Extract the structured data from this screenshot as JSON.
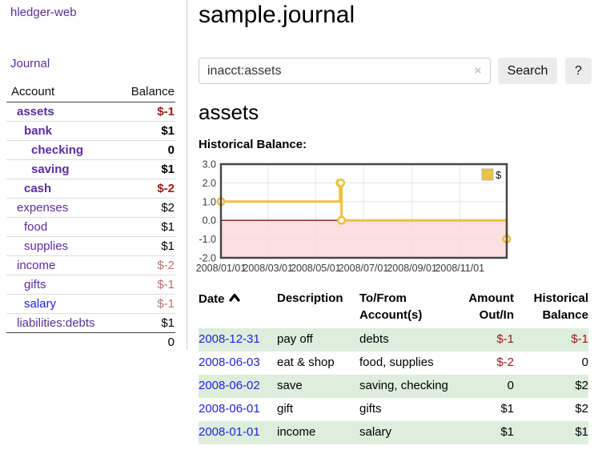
{
  "app": {
    "title": "hledger-web"
  },
  "colors": {
    "link_purple": "#5b2d9e",
    "link_blue": "#2222dd",
    "negative_strong": "#a51616",
    "negative_soft": "#bf6f6f",
    "row_shade_green": "#ddeedd",
    "chart_line_gold": "#edc240",
    "chart_negative_fill_pink": "#f9dada",
    "chart_zero_line_red": "#8c1717"
  },
  "sidebar": {
    "journal_link": "Journal",
    "accounts_table": {
      "headers": [
        "Account",
        "Balance"
      ],
      "rows": [
        {
          "name": "assets",
          "indent": 0,
          "bold": true,
          "name_class": "purple",
          "balance": "$-1",
          "balance_class": "neg"
        },
        {
          "name": "bank",
          "indent": 1,
          "bold": true,
          "name_class": "purple",
          "balance": "$1",
          "balance_class": ""
        },
        {
          "name": "checking",
          "indent": 2,
          "bold": true,
          "name_class": "purple",
          "balance": "0",
          "balance_class": ""
        },
        {
          "name": "saving",
          "indent": 2,
          "bold": true,
          "name_class": "purple",
          "balance": "$1",
          "balance_class": ""
        },
        {
          "name": "cash",
          "indent": 1,
          "bold": true,
          "name_class": "purple",
          "balance": "$-2",
          "balance_class": "neg"
        },
        {
          "name": "expenses",
          "indent": 0,
          "bold": false,
          "name_class": "purple",
          "balance": "$2",
          "balance_class": ""
        },
        {
          "name": "food",
          "indent": 1,
          "bold": false,
          "name_class": "purple",
          "balance": "$1",
          "balance_class": ""
        },
        {
          "name": "supplies",
          "indent": 1,
          "bold": false,
          "name_class": "purple",
          "balance": "$1",
          "balance_class": ""
        },
        {
          "name": "income",
          "indent": 0,
          "bold": false,
          "name_class": "purple",
          "balance": "$-2",
          "balance_class": "neg-soft"
        },
        {
          "name": "gifts",
          "indent": 1,
          "bold": false,
          "name_class": "purple",
          "balance": "$-1",
          "balance_class": "neg-soft"
        },
        {
          "name": "salary",
          "indent": 1,
          "bold": false,
          "name_class": "blue",
          "balance": "$-1",
          "balance_class": "neg-soft"
        },
        {
          "name": "liabilities:debts",
          "indent": 0,
          "bold": false,
          "name_class": "purple",
          "balance": "$1",
          "balance_class": ""
        }
      ],
      "total": "0"
    }
  },
  "main": {
    "title": "sample.journal",
    "search": {
      "value": "inacct:assets",
      "placeholder": "",
      "clear_icon": "×",
      "button": "Search",
      "help_button": "?"
    },
    "account_heading": "assets",
    "chart_label": "Historical Balance:",
    "chart_data": {
      "type": "line",
      "step": true,
      "title": "Historical Balance:",
      "xlabel": "",
      "ylabel": "",
      "xlim": [
        "2008-01-01",
        "2008-12-31"
      ],
      "ylim": [
        -2.0,
        3.0
      ],
      "grid": true,
      "legend_position": "top-right",
      "series": [
        {
          "name": "$",
          "color": "#edc240",
          "points": [
            [
              "2008-01-01",
              1
            ],
            [
              "2008-06-01",
              2
            ],
            [
              "2008-06-02",
              2
            ],
            [
              "2008-06-03",
              0
            ],
            [
              "2008-12-31",
              -1
            ]
          ]
        }
      ],
      "x_ticks": [
        "2008/01/01",
        "2008/03/01",
        "2008/05/01",
        "2008/07/01",
        "2008/09/01",
        "2008/11/01"
      ],
      "y_ticks": [
        3.0,
        2.0,
        1.0,
        0.0,
        -1.0,
        -2.0
      ],
      "negative_region": {
        "from": 0,
        "to": -2
      }
    },
    "register_table": {
      "headers": {
        "date": "Date",
        "description": "Description",
        "accounts": "To/From Account(s)",
        "amount": "Amount Out/In",
        "balance": "Historical Balance"
      },
      "rows": [
        {
          "date": "2008-12-31",
          "description": "pay off",
          "accounts": "debts",
          "amount": "$-1",
          "amount_class": "neg",
          "balance": "$-1",
          "balance_class": "neg",
          "shaded": true
        },
        {
          "date": "2008-06-03",
          "description": "eat & shop",
          "accounts": "food, supplies",
          "amount": "$-2",
          "amount_class": "neg",
          "balance": "0",
          "balance_class": "",
          "shaded": false
        },
        {
          "date": "2008-06-02",
          "description": "save",
          "accounts": "saving, checking",
          "amount": "0",
          "amount_class": "",
          "balance": "$2",
          "balance_class": "",
          "shaded": true
        },
        {
          "date": "2008-06-01",
          "description": "gift",
          "accounts": "gifts",
          "amount": "$1",
          "amount_class": "",
          "balance": "$2",
          "balance_class": "",
          "shaded": false
        },
        {
          "date": "2008-01-01",
          "description": "income",
          "accounts": "salary",
          "amount": "$1",
          "amount_class": "",
          "balance": "$1",
          "balance_class": "",
          "shaded": true
        }
      ]
    }
  }
}
